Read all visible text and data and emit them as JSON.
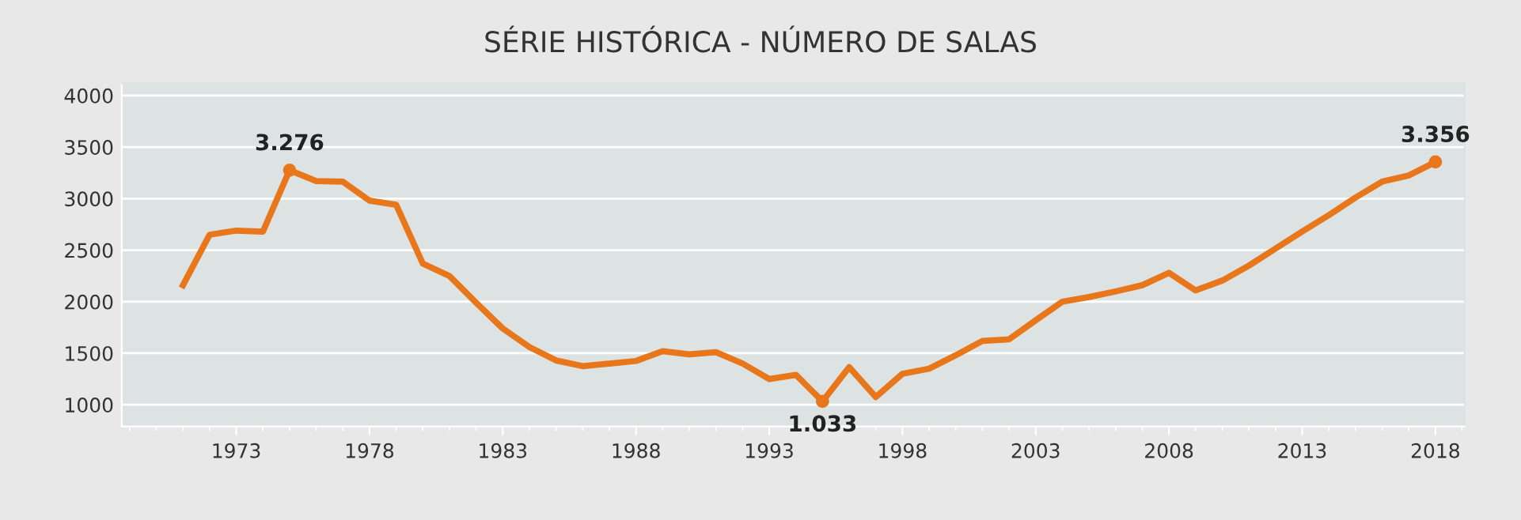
{
  "chart_data": {
    "type": "line",
    "title": "SÉRIE HISTÓRICA - NÚMERO DE SALAS",
    "x": [
      1971,
      1972,
      1973,
      1974,
      1975,
      1976,
      1977,
      1978,
      1979,
      1980,
      1981,
      1982,
      1983,
      1984,
      1985,
      1986,
      1987,
      1988,
      1989,
      1990,
      1991,
      1992,
      1993,
      1994,
      1995,
      1996,
      1997,
      1998,
      1999,
      2000,
      2001,
      2002,
      2003,
      2004,
      2005,
      2006,
      2007,
      2008,
      2009,
      2010,
      2011,
      2012,
      2013,
      2014,
      2015,
      2016,
      2017,
      2018
    ],
    "series": [
      {
        "color": "#e8761b",
        "values": [
          2160,
          2650,
          2690,
          2680,
          3276,
          3170,
          3165,
          2980,
          2940,
          2370,
          2250,
          1990,
          1740,
          1560,
          1430,
          1375,
          1400,
          1425,
          1520,
          1490,
          1510,
          1400,
          1250,
          1290,
          1033,
          1365,
          1075,
          1300,
          1350,
          1480,
          1620,
          1635,
          1820,
          2000,
          2045,
          2100,
          2160,
          2280,
          2110,
          2205,
          2350,
          2515,
          2680,
          2840,
          3010,
          3165,
          3225,
          3356
        ],
        "value_labels": [
          null,
          null,
          null,
          null,
          "3.276",
          null,
          null,
          null,
          null,
          null,
          null,
          null,
          null,
          null,
          null,
          null,
          null,
          null,
          null,
          null,
          null,
          null,
          null,
          null,
          "1.033",
          null,
          null,
          null,
          null,
          null,
          null,
          null,
          null,
          null,
          null,
          null,
          null,
          null,
          null,
          null,
          null,
          null,
          null,
          null,
          null,
          null,
          null,
          "3.356"
        ]
      }
    ],
    "xlim": [
      1968.7,
      2019.1
    ],
    "xticks": [
      1973,
      1978,
      1983,
      1988,
      1993,
      1998,
      2003,
      2008,
      2013,
      2018
    ],
    "ylim": [
      790,
      4120
    ],
    "yticks": [
      1000,
      1500,
      2000,
      2500,
      3000,
      3500,
      4000
    ],
    "grid": "y",
    "legend": false,
    "marker": "none",
    "line_style": "solid"
  }
}
